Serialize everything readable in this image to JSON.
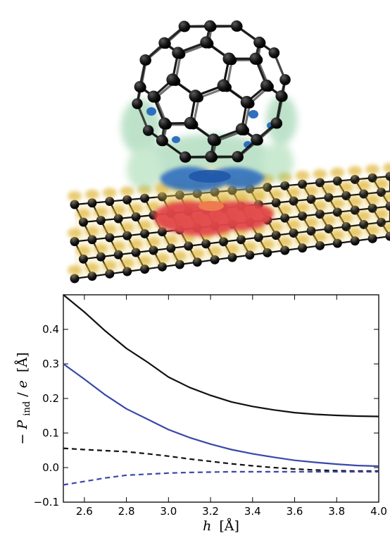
{
  "colors": {
    "black_series": "#111111",
    "blue_series": "#3848a8",
    "carbon_atom": "#161616",
    "density_orange": "#e0b638",
    "density_green": "#6fc08a",
    "density_blue": "#2f6fc0",
    "density_red": "#e2474a"
  },
  "chart_data": {
    "type": "line",
    "x": [
      2.5,
      2.6,
      2.7,
      2.8,
      2.9,
      3.0,
      3.1,
      3.2,
      3.3,
      3.4,
      3.5,
      3.6,
      3.7,
      3.8,
      3.9,
      4.0
    ],
    "series": [
      {
        "color": "#111111",
        "dash": "solid",
        "values": [
          0.5,
          0.45,
          0.395,
          0.345,
          0.305,
          0.262,
          0.232,
          0.209,
          0.19,
          0.177,
          0.167,
          0.159,
          0.154,
          0.151,
          0.149,
          0.148
        ]
      },
      {
        "color": "#3848a8",
        "dash": "solid",
        "values": [
          0.3,
          0.256,
          0.21,
          0.17,
          0.14,
          0.11,
          0.087,
          0.068,
          0.052,
          0.04,
          0.03,
          0.021,
          0.015,
          0.01,
          0.006,
          0.004
        ]
      },
      {
        "color": "#111111",
        "dash": "dashed",
        "values": [
          0.056,
          0.052,
          0.049,
          0.046,
          0.04,
          0.033,
          0.025,
          0.018,
          0.011,
          0.005,
          0.0,
          -0.004,
          -0.007,
          -0.009,
          -0.01,
          -0.01
        ]
      },
      {
        "color": "#3848a8",
        "dash": "dashed",
        "values": [
          -0.05,
          -0.04,
          -0.03,
          -0.022,
          -0.019,
          -0.016,
          -0.014,
          -0.013,
          -0.012,
          -0.012,
          -0.012,
          -0.012,
          -0.012,
          -0.012,
          -0.012,
          -0.012
        ]
      }
    ],
    "xlim": [
      2.5,
      4.0
    ],
    "ylim": [
      -0.1,
      0.5
    ],
    "xticks": [
      "2.6",
      "2.8",
      "3.0",
      "3.2",
      "3.4",
      "3.6",
      "3.8",
      "4.0"
    ],
    "yticks": [
      "−0.1",
      "0.0",
      "0.1",
      "0.2",
      "0.3",
      "0.4"
    ],
    "xlabel": {
      "var": "h",
      "unit": "[Å]"
    },
    "ylabel": {
      "prefix": "−",
      "var": "P",
      "sub": "ind",
      "mid": "/",
      "var2": "e",
      "unit": "[Å]"
    },
    "grid": false
  }
}
